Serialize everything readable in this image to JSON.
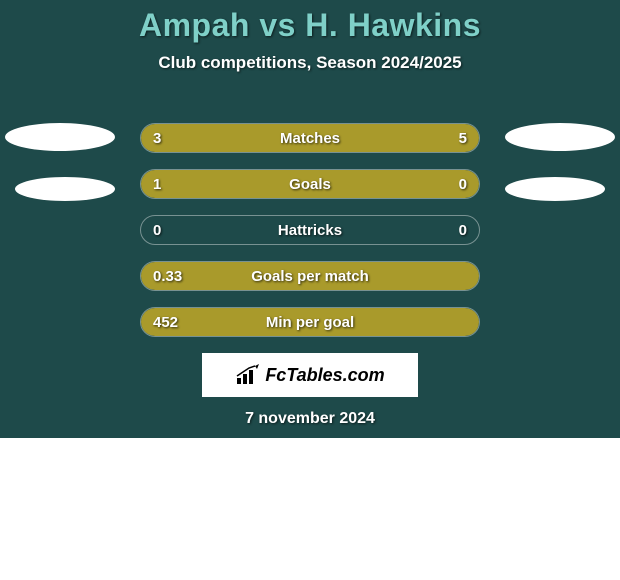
{
  "header": {
    "player_a": "Ampah",
    "vs": "vs",
    "player_b": "H. Hawkins",
    "subtitle": "Club competitions, Season 2024/2025"
  },
  "colors": {
    "background": "#1e4a4a",
    "bar_olive": "#a99a2b",
    "bar_empty_border": "rgba(255,255,255,0.4)",
    "title_color": "#7fd0c8",
    "subtitle_color": "#ffffff",
    "oval": "#ffffff"
  },
  "bars": [
    {
      "label": "Matches",
      "left_val": "3",
      "right_val": "5",
      "left_pct": 37.5,
      "right_pct": 62.5,
      "left_fill": "#a99a2b",
      "right_fill": "#a99a2b"
    },
    {
      "label": "Goals",
      "left_val": "1",
      "right_val": "0",
      "left_pct": 80,
      "right_pct": 20,
      "left_fill": "#a99a2b",
      "right_fill": "#a99a2b"
    },
    {
      "label": "Hattricks",
      "left_val": "0",
      "right_val": "0",
      "left_pct": 0,
      "right_pct": 0,
      "left_fill": "transparent",
      "right_fill": "transparent"
    },
    {
      "label": "Goals per match",
      "left_val": "0.33",
      "right_val": "",
      "left_pct": 100,
      "right_pct": 0,
      "left_fill": "#a99a2b",
      "right_fill": "transparent"
    },
    {
      "label": "Min per goal",
      "left_val": "452",
      "right_val": "",
      "left_pct": 100,
      "right_pct": 0,
      "left_fill": "#a99a2b",
      "right_fill": "transparent"
    }
  ],
  "logo": {
    "text": "FcTables.com"
  },
  "date": "7 november 2024",
  "typography": {
    "title_fontsize": 32,
    "subtitle_fontsize": 17,
    "bar_label_fontsize": 15,
    "date_fontsize": 16
  }
}
